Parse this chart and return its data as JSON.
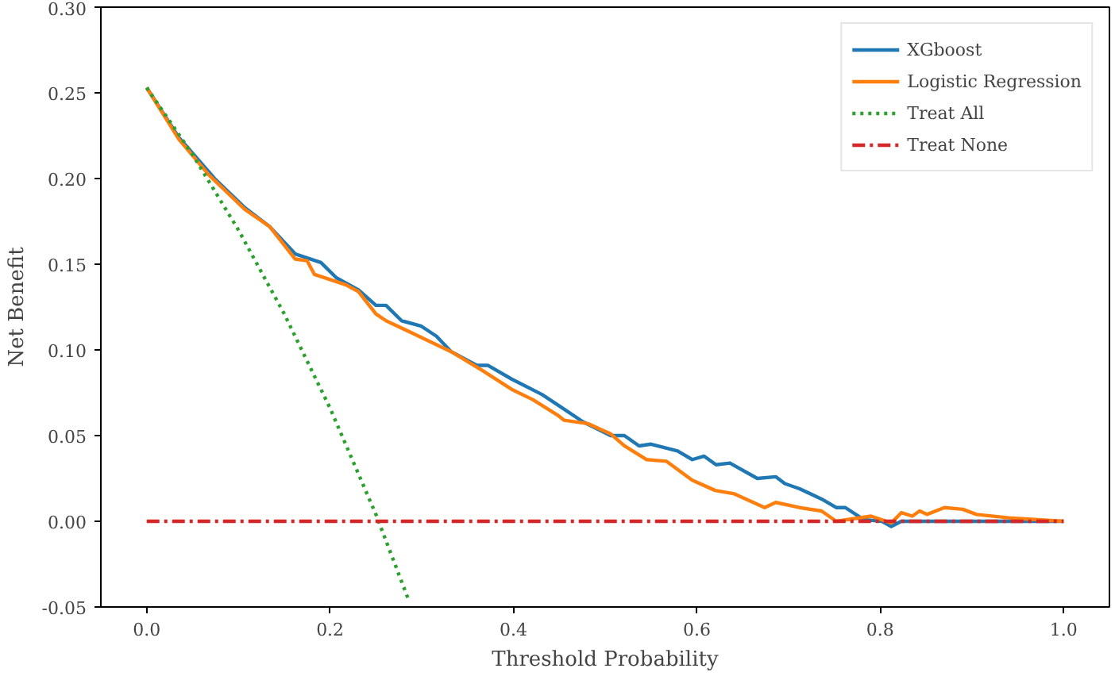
{
  "chart_data": {
    "type": "line",
    "xlabel": "Threshold Probability",
    "ylabel": "Net Benefit",
    "xlim": [
      -0.05,
      1.05
    ],
    "ylim": [
      -0.05,
      0.3
    ],
    "xticks": [
      {
        "value": 0,
        "label": "0.0"
      },
      {
        "value": 0.2,
        "label": "0.2"
      },
      {
        "value": 0.4,
        "label": "0.4"
      },
      {
        "value": 0.6,
        "label": "0.6"
      },
      {
        "value": 0.8,
        "label": "0.8"
      },
      {
        "value": 1,
        "label": "1.0"
      }
    ],
    "yticks": [
      {
        "value": -0.05,
        "label": "-0.05"
      },
      {
        "value": 0,
        "label": "0.00"
      },
      {
        "value": 0.05,
        "label": "0.05"
      },
      {
        "value": 0.1,
        "label": "0.10"
      },
      {
        "value": 0.15,
        "label": "0.15"
      },
      {
        "value": 0.2,
        "label": "0.20"
      },
      {
        "value": 0.25,
        "label": "0.25"
      },
      {
        "value": 0.3,
        "label": "0.30"
      }
    ],
    "grid": false,
    "legend": "top right",
    "series": [
      {
        "name": "XGboost",
        "color": "#1f77b4",
        "line_style": "solid",
        "x": [
          0,
          0.035,
          0.074,
          0.107,
          0.134,
          0.162,
          0.19,
          0.207,
          0.231,
          0.25,
          0.261,
          0.278,
          0.299,
          0.316,
          0.332,
          0.36,
          0.372,
          0.398,
          0.431,
          0.448,
          0.476,
          0.506,
          0.521,
          0.537,
          0.55,
          0.579,
          0.595,
          0.608,
          0.621,
          0.636,
          0.666,
          0.686,
          0.696,
          0.712,
          0.736,
          0.752,
          0.762,
          0.782,
          0.802,
          0.812,
          0.823,
          0.9,
          1.0
        ],
        "values": [
          0.253,
          0.224,
          0.2,
          0.183,
          0.172,
          0.156,
          0.151,
          0.142,
          0.135,
          0.126,
          0.126,
          0.117,
          0.114,
          0.108,
          0.099,
          0.091,
          0.091,
          0.083,
          0.074,
          0.068,
          0.058,
          0.05,
          0.05,
          0.044,
          0.045,
          0.041,
          0.036,
          0.038,
          0.033,
          0.034,
          0.025,
          0.026,
          0.022,
          0.019,
          0.013,
          0.008,
          0.008,
          0.001,
          0.0,
          -0.003,
          0.0,
          0.0,
          0.0
        ]
      },
      {
        "name": "Logistic Regression",
        "color": "#ff7f0e",
        "line_style": "solid",
        "x": [
          0,
          0.035,
          0.068,
          0.107,
          0.134,
          0.162,
          0.175,
          0.183,
          0.217,
          0.231,
          0.25,
          0.261,
          0.289,
          0.332,
          0.366,
          0.398,
          0.421,
          0.448,
          0.455,
          0.481,
          0.506,
          0.521,
          0.545,
          0.567,
          0.595,
          0.62,
          0.641,
          0.674,
          0.686,
          0.712,
          0.736,
          0.752,
          0.79,
          0.812,
          0.823,
          0.835,
          0.843,
          0.851,
          0.87,
          0.89,
          0.905,
          0.94,
          1.0
        ],
        "values": [
          0.253,
          0.223,
          0.202,
          0.182,
          0.172,
          0.153,
          0.152,
          0.144,
          0.138,
          0.134,
          0.121,
          0.117,
          0.11,
          0.099,
          0.088,
          0.077,
          0.071,
          0.062,
          0.059,
          0.057,
          0.051,
          0.044,
          0.036,
          0.035,
          0.024,
          0.018,
          0.016,
          0.008,
          0.011,
          0.008,
          0.006,
          0.0,
          0.003,
          -0.001,
          0.005,
          0.003,
          0.006,
          0.004,
          0.008,
          0.007,
          0.004,
          0.002,
          0.0
        ]
      },
      {
        "name": "Treat All",
        "color": "#2ca02c",
        "line_style": "dotted",
        "x": [
          0,
          0.05,
          0.1,
          0.15,
          0.2,
          0.25,
          0.285
        ],
        "values": [
          0.253,
          0.214,
          0.17,
          0.121,
          0.066,
          0.004,
          -0.045
        ]
      },
      {
        "name": "Treat None",
        "color": "#d62728",
        "line_style": "dashdot",
        "x": [
          0,
          1
        ],
        "values": [
          0,
          0
        ]
      }
    ]
  }
}
